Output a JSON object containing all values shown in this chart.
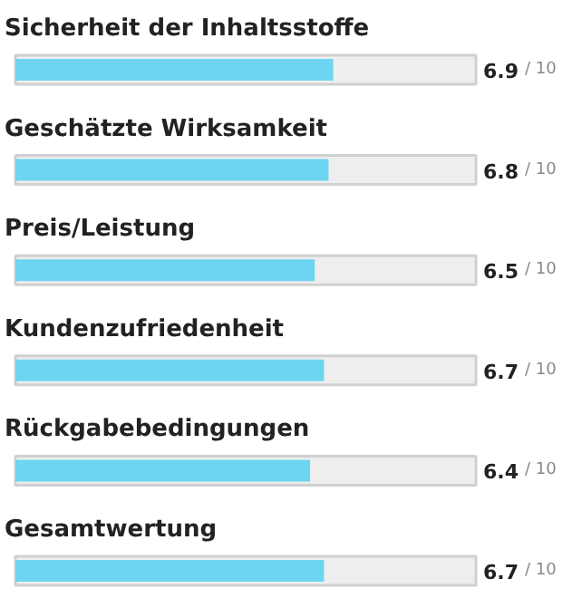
{
  "chart_data": {
    "type": "bar",
    "orientation": "horizontal",
    "categories": [
      "Sicherheit der Inhaltsstoffe",
      "Geschätzte Wirksamkeit",
      "Preis/Leistung",
      "Kundenzufriedenheit",
      "Rückgabebedingungen",
      "Gesamtwertung"
    ],
    "values": [
      6.9,
      6.8,
      6.5,
      6.7,
      6.4,
      6.7
    ],
    "data_labels": true,
    "annotations": [
      "/ 10",
      "/ 10",
      "/ 10",
      "/ 10",
      "/ 10",
      "/ 10"
    ],
    "color": "#6dd5f0",
    "xlim": [
      0,
      10
    ],
    "tick_labels": false,
    "grid": false
  }
}
